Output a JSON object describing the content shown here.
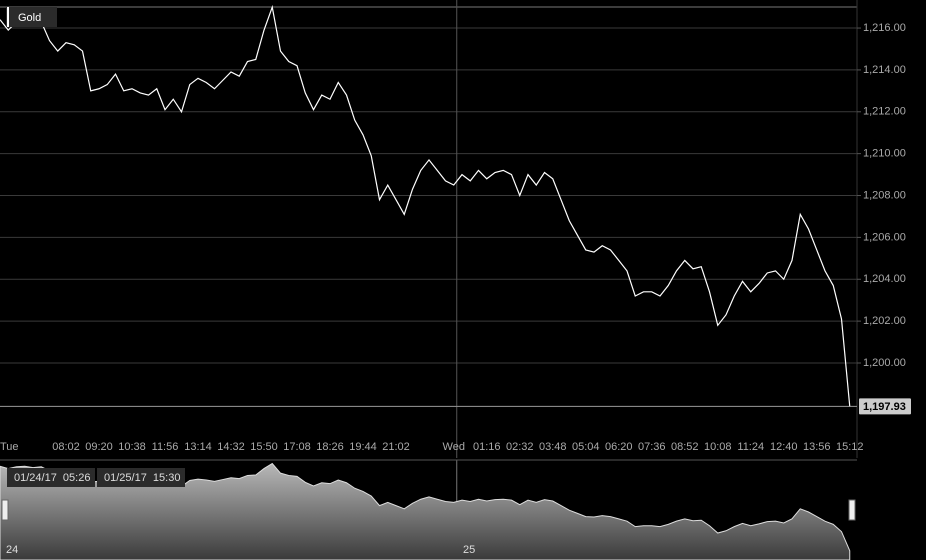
{
  "chart_data": {
    "type": "line",
    "categories": [
      null,
      "Tue",
      null,
      null,
      null,
      null,
      null,
      null,
      "08:02",
      null,
      null,
      null,
      "09:20",
      null,
      null,
      null,
      "10:38",
      null,
      null,
      null,
      "11:56",
      null,
      null,
      null,
      "13:14",
      null,
      null,
      null,
      "14:32",
      null,
      null,
      null,
      "15:50",
      null,
      null,
      null,
      "17:08",
      null,
      null,
      null,
      "18:26",
      null,
      null,
      null,
      "19:44",
      null,
      null,
      null,
      "21:02",
      null,
      null,
      null,
      null,
      null,
      null,
      "Wed",
      null,
      null,
      null,
      "01:16",
      null,
      null,
      null,
      "02:32",
      null,
      null,
      null,
      "03:48",
      null,
      null,
      null,
      "05:04",
      null,
      null,
      null,
      "06:20",
      null,
      null,
      null,
      "07:36",
      null,
      null,
      null,
      "08:52",
      null,
      null,
      null,
      "10:08",
      null,
      null,
      null,
      "11:24",
      null,
      null,
      null,
      "12:40",
      null,
      null,
      null,
      "13:56",
      null,
      null,
      null,
      "15:12"
    ],
    "series": [
      {
        "name": "Gold",
        "color": "#ffffff",
        "values": [
          1216.4,
          1215.9,
          1216.3,
          1216.4,
          1216.1,
          1216.3,
          1215.4,
          1214.9,
          1215.3,
          1215.2,
          1214.9,
          1213.0,
          1213.1,
          1213.3,
          1213.8,
          1213.0,
          1213.1,
          1212.9,
          1212.8,
          1213.1,
          1212.1,
          1212.6,
          1212.0,
          1213.3,
          1213.6,
          1213.4,
          1213.1,
          1213.5,
          1213.9,
          1213.7,
          1214.4,
          1214.5,
          1215.9,
          1217.0,
          1214.9,
          1214.4,
          1214.2,
          1212.9,
          1212.1,
          1212.8,
          1212.6,
          1213.4,
          1212.8,
          1211.6,
          1210.9,
          1209.9,
          1207.8,
          1208.5,
          1207.8,
          1207.1,
          1208.3,
          1209.2,
          1209.7,
          1209.2,
          1208.7,
          1208.5,
          1209.0,
          1208.7,
          1209.2,
          1208.8,
          1209.1,
          1209.2,
          1209.0,
          1208.0,
          1209.0,
          1208.5,
          1209.1,
          1208.8,
          1207.8,
          1206.8,
          1206.1,
          1205.4,
          1205.3,
          1205.6,
          1205.4,
          1204.9,
          1204.4,
          1203.2,
          1203.4,
          1203.4,
          1203.2,
          1203.7,
          1204.4,
          1204.9,
          1204.5,
          1204.6,
          1203.4,
          1201.8,
          1202.3,
          1203.2,
          1203.9,
          1203.4,
          1203.8,
          1204.3,
          1204.4,
          1204.0,
          1204.9,
          1207.1,
          1206.4,
          1205.4,
          1204.4,
          1203.7,
          1202.1,
          1197.93
        ],
        "value_labels": [
          null,
          null,
          null,
          null,
          null,
          null,
          null,
          null,
          null,
          null,
          null,
          null,
          null,
          null,
          null,
          null,
          null,
          null,
          null,
          null,
          null,
          null,
          null,
          null,
          null,
          null,
          null,
          null,
          null,
          null,
          null,
          null,
          null,
          null,
          null,
          null,
          null,
          null,
          null,
          null,
          null,
          null,
          null,
          null,
          null,
          null,
          null,
          null,
          null,
          null,
          null,
          null,
          null,
          null,
          null,
          null,
          null,
          null,
          null,
          null,
          null,
          null,
          null,
          null,
          null,
          null,
          null,
          null,
          null,
          null,
          null,
          null,
          null,
          null,
          null,
          null,
          null,
          null,
          null,
          null,
          null,
          null,
          null,
          null,
          null,
          null,
          null,
          null,
          null,
          null,
          null,
          null,
          null,
          null,
          null,
          null,
          null,
          null,
          null,
          null,
          null,
          null,
          null,
          "1,197.93"
        ]
      }
    ],
    "ylim": [
      1196.56,
      1217.34
    ],
    "yticks": [
      {
        "value": 1200,
        "label": "1,200.00"
      },
      {
        "value": 1202,
        "label": "1,202.00"
      },
      {
        "value": 1204,
        "label": "1,204.00"
      },
      {
        "value": 1206,
        "label": "1,206.00"
      },
      {
        "value": 1208,
        "label": "1,208.00"
      },
      {
        "value": 1210,
        "label": "1,210.00"
      },
      {
        "value": 1212,
        "label": "1,212.00"
      },
      {
        "value": 1214,
        "label": "1,214.00"
      },
      {
        "value": 1216,
        "label": "1,216.00"
      }
    ],
    "grid": true,
    "navigator": {
      "range_start": "01/24/17  05:26",
      "range_end": "01/25/17  15:30",
      "day_labels": [
        "24",
        "25"
      ]
    }
  }
}
